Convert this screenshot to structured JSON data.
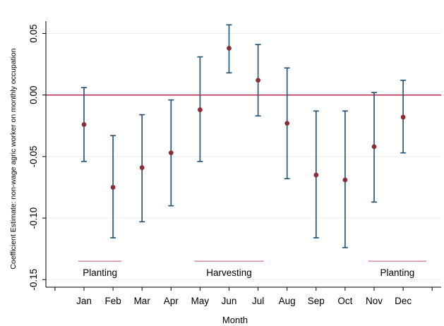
{
  "chart_data": {
    "type": "scatter",
    "subtype": "coefficient-plot-with-confidence-intervals",
    "title": "",
    "xlabel": "Month",
    "ylabel": "Coefficient Estimate: non-wage agric worker on monthly occupation",
    "categories": [
      "Jan",
      "Feb",
      "Mar",
      "Apr",
      "May",
      "Jun",
      "Jul",
      "Aug",
      "Sep",
      "Oct",
      "Nov",
      "Dec"
    ],
    "series": [
      {
        "values": [
          -0.024,
          -0.075,
          -0.059,
          -0.047,
          -0.012,
          0.038,
          0.012,
          -0.023,
          -0.065,
          -0.069,
          -0.042,
          -0.018
        ],
        "ci_lower": [
          -0.054,
          -0.116,
          -0.103,
          -0.09,
          -0.054,
          0.018,
          -0.017,
          -0.068,
          -0.116,
          -0.124,
          -0.087,
          -0.047
        ],
        "ci_upper": [
          0.006,
          -0.033,
          -0.016,
          -0.004,
          0.031,
          0.057,
          0.041,
          0.022,
          -0.013,
          -0.013,
          0.002,
          0.012
        ]
      }
    ],
    "ylim": [
      -0.155,
      0.06
    ],
    "yticks": [
      -0.15,
      -0.1,
      -0.05,
      0.0,
      0.05
    ],
    "ytick_labels": [
      "-0.15",
      "-0.10",
      "-0.05",
      "0.00",
      "0.05"
    ],
    "reference_line_y": 0,
    "grid": "horizontal",
    "annotations": [
      {
        "text": "Planting",
        "x_start": 0.8,
        "x_end": 2.3,
        "y": -0.135
      },
      {
        "text": "Harvesting",
        "x_start": 4.8,
        "x_end": 7.2,
        "y": -0.135
      },
      {
        "text": "Planting",
        "x_start": 10.8,
        "x_end": 12.8,
        "y": -0.135
      }
    ],
    "colors": {
      "marker": "#8b2c37",
      "ci": "#1f4e6e",
      "reference_line": "#b0153b",
      "annotation_line": "#c0506a",
      "grid": "#e9edf1"
    }
  }
}
